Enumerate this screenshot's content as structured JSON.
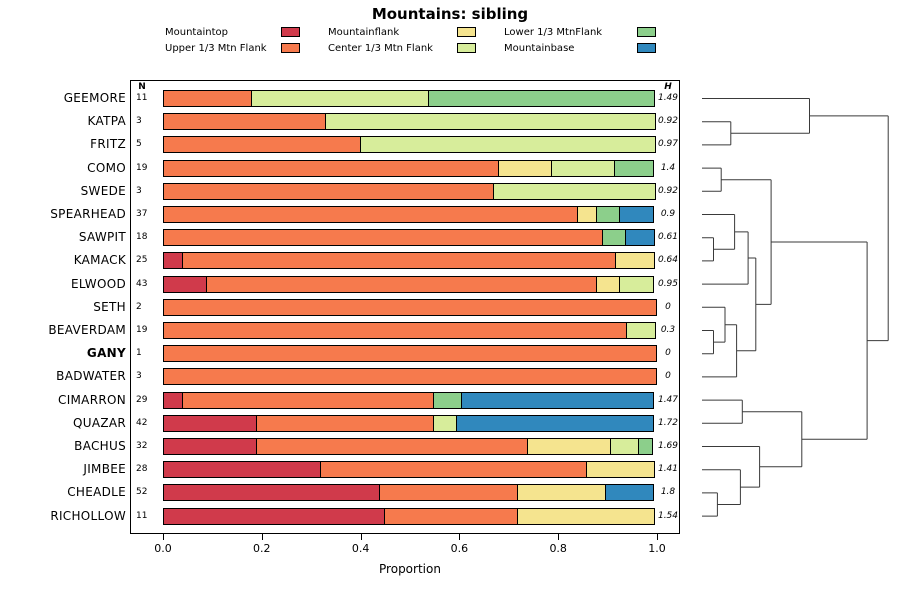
{
  "chart_data": {
    "type": "bar",
    "orientation": "horizontal-stacked",
    "title": "Mountains: sibling",
    "xlabel": "Proportion",
    "n_header": "N",
    "h_header": "H",
    "xlim": [
      0,
      1
    ],
    "x_ticks": [
      0.0,
      0.2,
      0.4,
      0.6,
      0.8,
      1.0
    ],
    "x_tick_labels": [
      "0.0",
      "0.2",
      "0.4",
      "0.6",
      "0.8",
      "1.0"
    ],
    "grid": false,
    "legend_position": "top",
    "categories": [
      {
        "label": "Mountaintop",
        "color": "#d03a4b"
      },
      {
        "label": "Upper 1/3 Mtn Flank",
        "color": "#f67a4d"
      },
      {
        "label": "Mountainflank",
        "color": "#f5e48f"
      },
      {
        "label": "Center 1/3 Mtn Flank",
        "color": "#d7ed9b"
      },
      {
        "label": "Lower 1/3 MtnFlank",
        "color": "#8ccf8b"
      },
      {
        "label": "Mountainbase",
        "color": "#3088bd"
      }
    ],
    "legend_display_order": [
      0,
      2,
      4,
      1,
      3,
      5
    ],
    "rows": [
      {
        "label": "GEEMORE",
        "n": 11,
        "h": "1.49",
        "bold": false,
        "values": [
          0,
          0.18,
          0,
          0.36,
          0.46,
          0
        ]
      },
      {
        "label": "KATPA",
        "n": 3,
        "h": "0.92",
        "bold": false,
        "values": [
          0,
          0.33,
          0,
          0.67,
          0,
          0
        ]
      },
      {
        "label": "FRITZ",
        "n": 5,
        "h": "0.97",
        "bold": false,
        "values": [
          0,
          0.4,
          0,
          0.6,
          0,
          0
        ]
      },
      {
        "label": "COMO",
        "n": 19,
        "h": "1.4",
        "bold": false,
        "values": [
          0,
          0.68,
          0.11,
          0.13,
          0.08,
          0
        ]
      },
      {
        "label": "SWEDE",
        "n": 3,
        "h": "0.92",
        "bold": false,
        "values": [
          0,
          0.67,
          0,
          0.33,
          0,
          0
        ]
      },
      {
        "label": "SPEARHEAD",
        "n": 37,
        "h": "0.9",
        "bold": false,
        "values": [
          0,
          0.84,
          0.04,
          0,
          0.05,
          0.07
        ]
      },
      {
        "label": "SAWPIT",
        "n": 18,
        "h": "0.61",
        "bold": false,
        "values": [
          0,
          0.89,
          0,
          0,
          0.05,
          0.06
        ]
      },
      {
        "label": "KAMACK",
        "n": 25,
        "h": "0.64",
        "bold": false,
        "values": [
          0.04,
          0.88,
          0.08,
          0,
          0,
          0
        ]
      },
      {
        "label": "ELWOOD",
        "n": 43,
        "h": "0.95",
        "bold": false,
        "values": [
          0.09,
          0.79,
          0.05,
          0.07,
          0,
          0
        ]
      },
      {
        "label": "SETH",
        "n": 2,
        "h": "0",
        "bold": false,
        "values": [
          0,
          1.0,
          0,
          0,
          0,
          0
        ]
      },
      {
        "label": "BEAVERDAM",
        "n": 19,
        "h": "0.3",
        "bold": false,
        "values": [
          0,
          0.94,
          0,
          0.06,
          0,
          0
        ]
      },
      {
        "label": "GANY",
        "n": 1,
        "h": "0",
        "bold": true,
        "values": [
          0,
          1.0,
          0,
          0,
          0,
          0
        ]
      },
      {
        "label": "BADWATER",
        "n": 3,
        "h": "0",
        "bold": false,
        "values": [
          0,
          1.0,
          0,
          0,
          0,
          0
        ]
      },
      {
        "label": "CIMARRON",
        "n": 29,
        "h": "1.47",
        "bold": false,
        "values": [
          0.04,
          0.51,
          0,
          0,
          0.06,
          0.39
        ]
      },
      {
        "label": "QUAZAR",
        "n": 42,
        "h": "1.72",
        "bold": false,
        "values": [
          0.19,
          0.36,
          0,
          0.05,
          0,
          0.4
        ]
      },
      {
        "label": "BACHUS",
        "n": 32,
        "h": "1.69",
        "bold": false,
        "values": [
          0.19,
          0.55,
          0.17,
          0.06,
          0.03,
          0
        ]
      },
      {
        "label": "JIMBEE",
        "n": 28,
        "h": "1.41",
        "bold": false,
        "values": [
          0.32,
          0.54,
          0.14,
          0,
          0,
          0
        ]
      },
      {
        "label": "CHEADLE",
        "n": 52,
        "h": "1.8",
        "bold": false,
        "values": [
          0.44,
          0.28,
          0.18,
          0,
          0,
          0.1
        ]
      },
      {
        "label": "RICHOLLOW",
        "n": 11,
        "h": "1.54",
        "bold": false,
        "values": [
          0.45,
          0.27,
          0.28,
          0,
          0,
          0
        ]
      }
    ],
    "dendrogram": {
      "h": 0.97,
      "children": [
        {
          "h": 0.56,
          "children": [
            {
              "leaf": 0
            },
            {
              "h": 0.15,
              "children": [
                {
                  "leaf": 1
                },
                {
                  "leaf": 2
                }
              ]
            }
          ]
        },
        {
          "h": 0.86,
          "children": [
            {
              "h": 0.36,
              "children": [
                {
                  "h": 0.1,
                  "children": [
                    {
                      "leaf": 3
                    },
                    {
                      "leaf": 4
                    }
                  ]
                },
                {
                  "h": 0.28,
                  "children": [
                    {
                      "h": 0.24,
                      "children": [
                        {
                          "h": 0.17,
                          "children": [
                            {
                              "leaf": 5
                            },
                            {
                              "h": 0.06,
                              "children": [
                                {
                                  "leaf": 6
                                },
                                {
                                  "leaf": 7
                                }
                              ]
                            }
                          ]
                        },
                        {
                          "leaf": 8
                        }
                      ]
                    },
                    {
                      "h": 0.18,
                      "children": [
                        {
                          "h": 0.12,
                          "children": [
                            {
                              "leaf": 9
                            },
                            {
                              "h": 0.06,
                              "children": [
                                {
                                  "leaf": 10
                                },
                                {
                                  "leaf": 11
                                }
                              ]
                            }
                          ]
                        },
                        {
                          "leaf": 12
                        }
                      ]
                    }
                  ]
                }
              ]
            },
            {
              "h": 0.52,
              "children": [
                {
                  "h": 0.21,
                  "children": [
                    {
                      "leaf": 13
                    },
                    {
                      "leaf": 14
                    }
                  ]
                },
                {
                  "h": 0.3,
                  "children": [
                    {
                      "leaf": 15
                    },
                    {
                      "h": 0.2,
                      "children": [
                        {
                          "leaf": 16
                        },
                        {
                          "h": 0.08,
                          "children": [
                            {
                              "leaf": 17
                            },
                            {
                              "leaf": 18
                            }
                          ]
                        }
                      ]
                    }
                  ]
                }
              ]
            }
          ]
        }
      ]
    }
  }
}
